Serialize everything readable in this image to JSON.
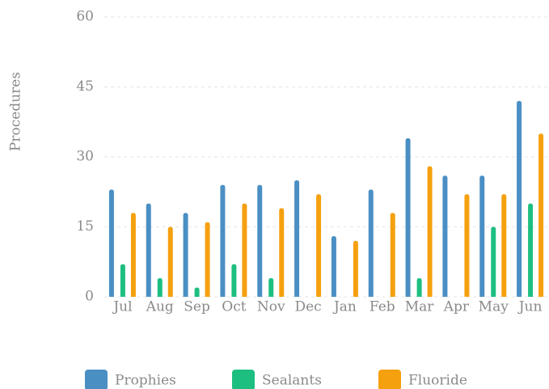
{
  "chart_data": {
    "type": "bar",
    "y_label": "Procedures",
    "categories": [
      "Jul",
      "Aug",
      "Sep",
      "Oct",
      "Nov",
      "Dec",
      "Jan",
      "Feb",
      "Mar",
      "Apr",
      "May",
      "Jun"
    ],
    "series": [
      {
        "name": "Prophies",
        "color": "#4a8fc4",
        "values": [
          23,
          20,
          18,
          24,
          24,
          25,
          13,
          23,
          34,
          26,
          26,
          42
        ]
      },
      {
        "name": "Sealants",
        "color": "#1dbf80",
        "values": [
          7,
          4,
          2,
          7,
          4,
          0,
          0,
          0,
          4,
          0,
          15,
          20
        ]
      },
      {
        "name": "Fluoride",
        "color": "#f5a00f",
        "values": [
          18,
          15,
          16,
          20,
          19,
          22,
          12,
          18,
          28,
          22,
          22,
          35
        ]
      }
    ],
    "ylim": [
      0,
      60
    ],
    "yticks": [
      0,
      15,
      30,
      45,
      60
    ],
    "grid": true
  }
}
